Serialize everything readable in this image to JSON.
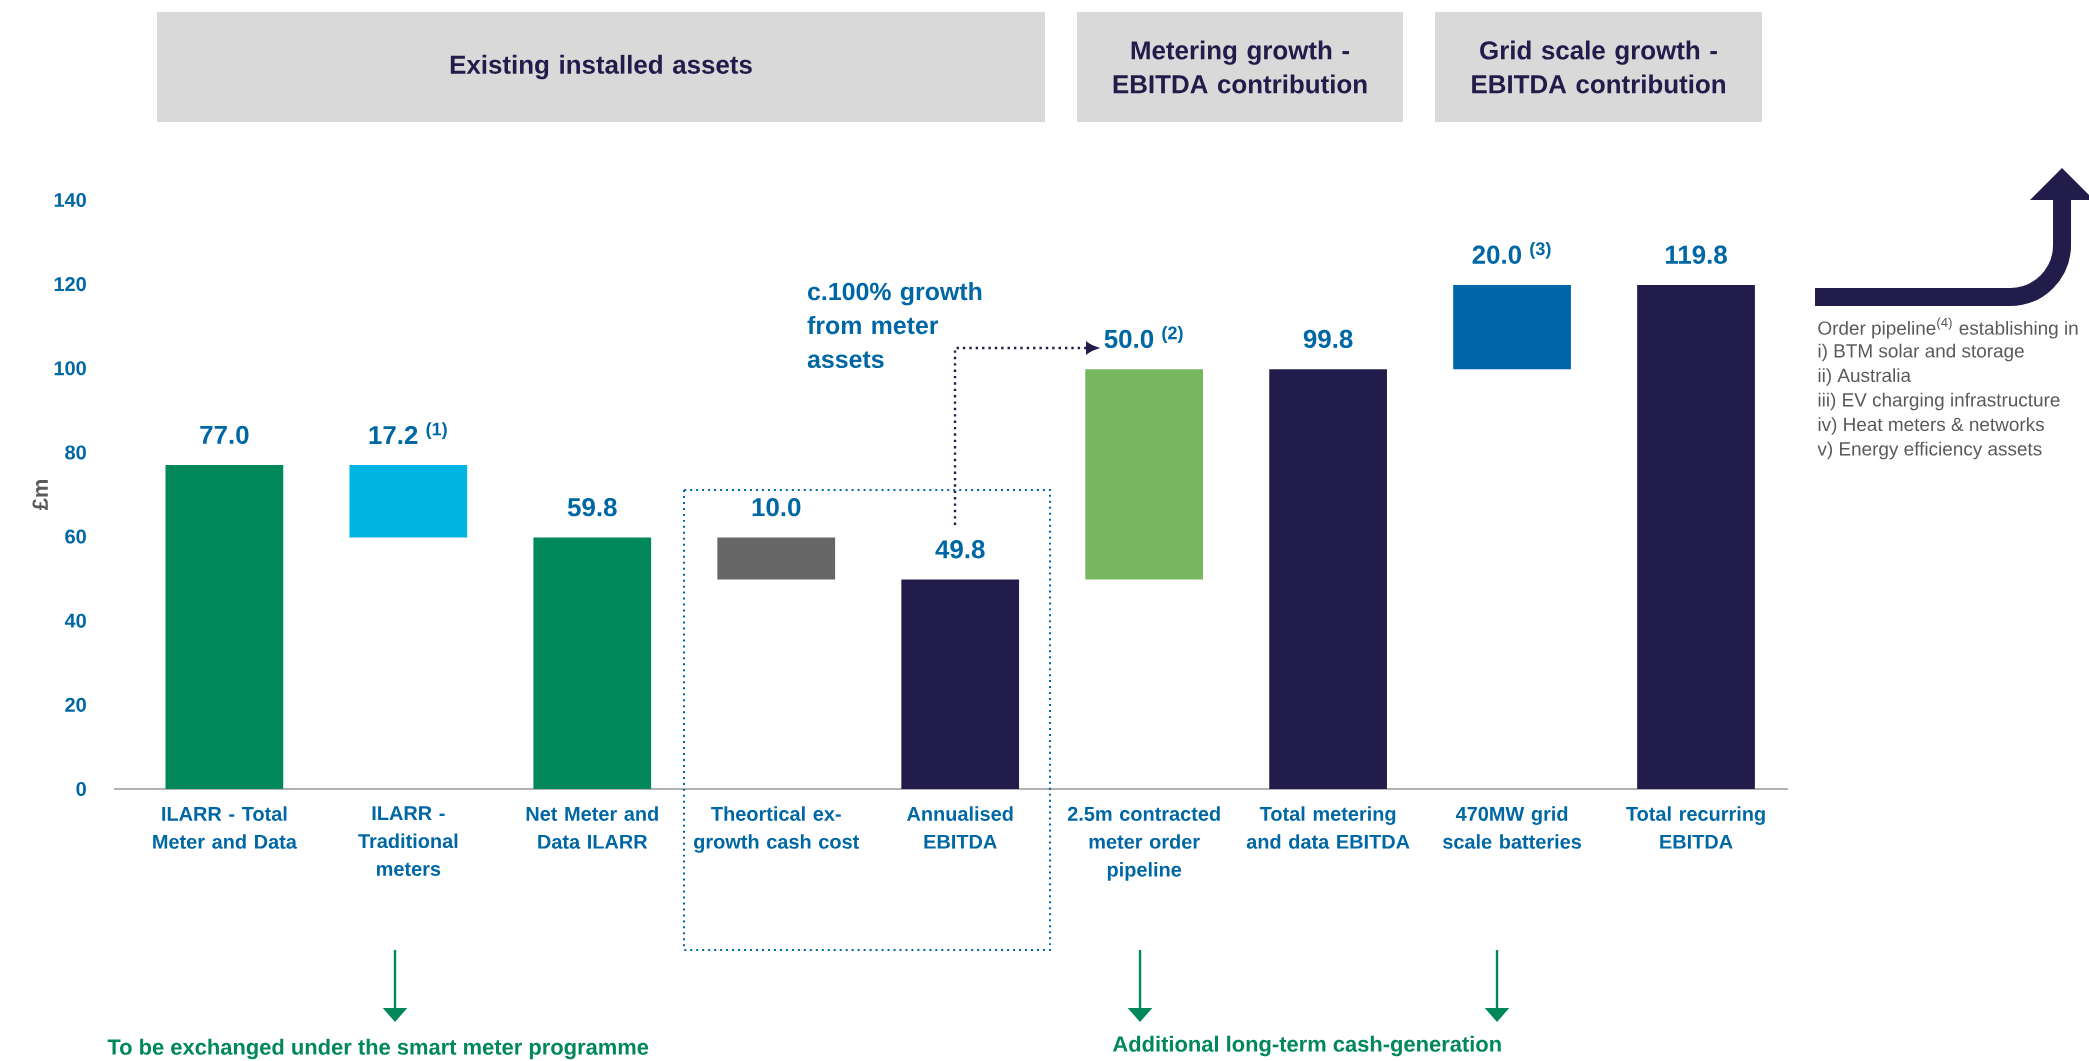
{
  "chart_data": {
    "type": "bar",
    "categories": [
      "ILARR - Total Meter and Data",
      "ILARR - Traditional meters",
      "Net Meter and Data ILARR",
      "Theortical ex-growth cash cost",
      "Annualised EBITDA",
      "2.5m contracted meter order pipeline",
      "Total metering and data EBITDA",
      "470MW grid scale batteries",
      "Total recurring EBITDA"
    ],
    "values": [
      77.0,
      17.2,
      59.8,
      10.0,
      49.8,
      50.0,
      99.8,
      20.0,
      119.8
    ],
    "base": [
      0,
      59.8,
      0,
      49.8,
      0,
      49.8,
      0,
      99.8,
      0
    ],
    "colors": [
      "#00875a",
      "#00b5e2",
      "#00875a",
      "#666666",
      "#221c4a",
      "#77b760",
      "#221c4a",
      "#0066a8",
      "#221c4a"
    ],
    "value_labels": [
      "77.0",
      "17.2 $^{(1)}$",
      "59.8",
      "10.0",
      "49.8",
      "50.0 $^{(2)}$",
      "99.8",
      "20.0 $^{(3)}$",
      "119.8"
    ],
    "ylabel": "£m",
    "ylim": [
      0,
      140
    ],
    "yticks": [
      0,
      20,
      40,
      60,
      80,
      100,
      120,
      140
    ],
    "grid": false,
    "annotations": [
      "Existing installed assets",
      "Metering growth - EBITDA contribution",
      "Grid scale growth - EBITDA contribution",
      "c.100% growth from meter assets",
      "Order pipeline$^{(4)}$ establishing in",
      "i) BTM solar and storage",
      "ii) Australia",
      "iii) EV charging infrastructure",
      "iv) Heat meters & networks",
      "v) Energy efficiency assets",
      "To be exchanged under the smart meter programme",
      "Additional long-term cash-generation"
    ]
  }
}
